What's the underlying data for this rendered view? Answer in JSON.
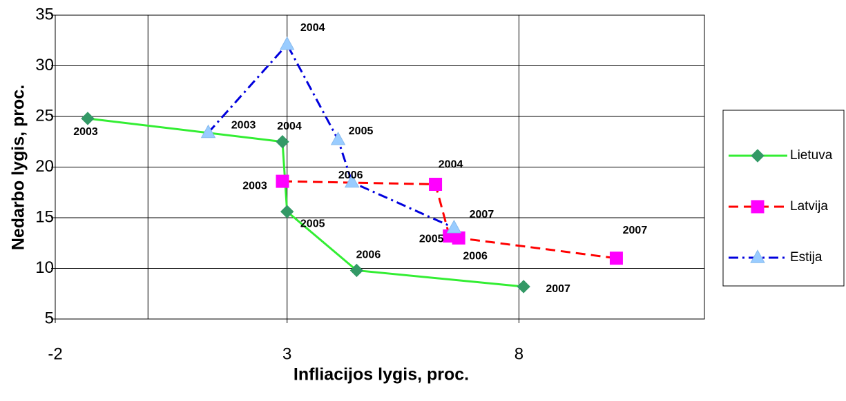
{
  "chart_data": {
    "type": "line-scatter",
    "xlabel": "Infliacijos lygis, proc.",
    "ylabel": "Nedarbo lygis, proc.",
    "xlim": [
      -2,
      12
    ],
    "xticks": [
      -2,
      3,
      8
    ],
    "ylim": [
      5,
      35
    ],
    "yticks": [
      5,
      10,
      15,
      20,
      25,
      30,
      35
    ],
    "grid": true,
    "legend": "right",
    "series": [
      {
        "name": "Lietuva",
        "color": "#33ee33",
        "marker_color": "#339966",
        "marker": "diamond",
        "linestyle": "solid",
        "x": [
          -1.3,
          2.9,
          3.0,
          4.5,
          8.1
        ],
        "values": [
          24.8,
          22.5,
          15.6,
          9.8,
          8.2
        ],
        "labels": [
          "2003",
          "2004",
          "2005",
          "2006",
          "2007"
        ]
      },
      {
        "name": "Latvija",
        "color": "#ff0000",
        "marker_color": "#ff00ff",
        "marker": "square",
        "linestyle": "dashed",
        "x": [
          2.9,
          6.2,
          6.5,
          6.7,
          10.1
        ],
        "values": [
          18.6,
          18.3,
          13.2,
          13.0,
          11.0
        ],
        "labels": [
          "2003",
          "2004",
          "2005",
          "2006",
          "2007"
        ]
      },
      {
        "name": "Estija",
        "color": "#0000dd",
        "marker_color": "#99ccff",
        "marker": "triangle",
        "linestyle": "dashdot",
        "x": [
          1.3,
          3.0,
          4.1,
          4.4,
          6.6
        ],
        "values": [
          23.4,
          32.1,
          22.7,
          18.5,
          14.0
        ],
        "labels": [
          "2003",
          "2004",
          "2005",
          "2006",
          "2007"
        ]
      }
    ]
  }
}
